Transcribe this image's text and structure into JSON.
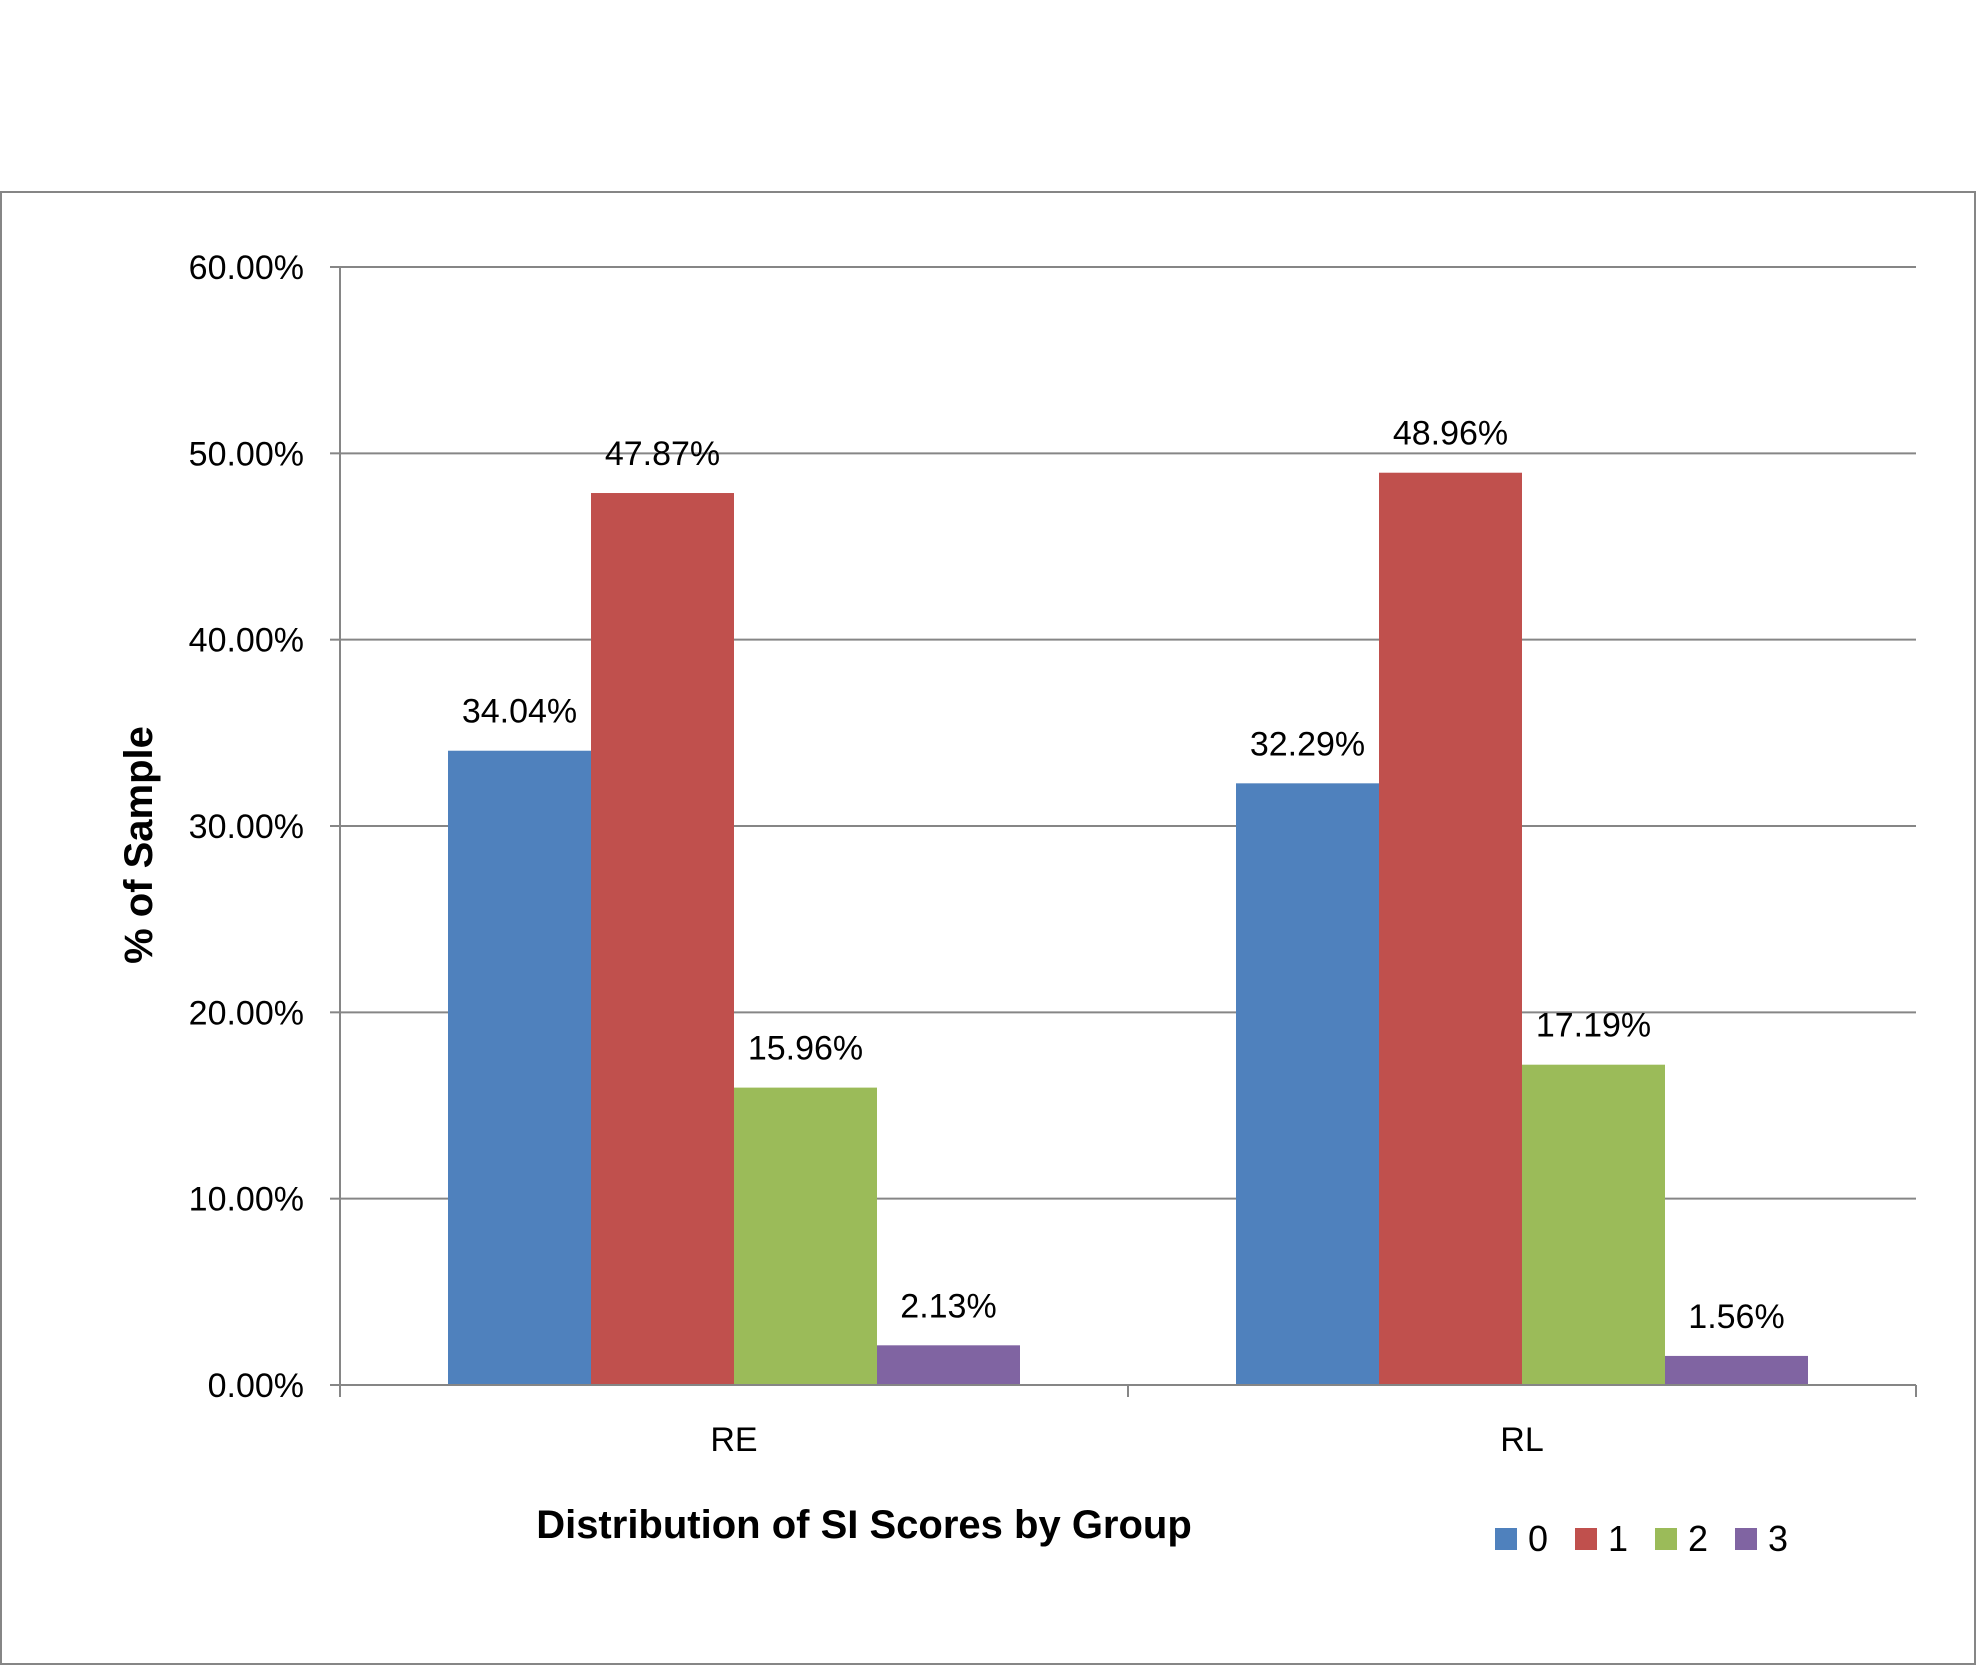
{
  "chart_data": {
    "type": "bar",
    "categories": [
      "RE",
      "RL"
    ],
    "series": [
      {
        "name": "0",
        "color": "#4F81BD",
        "values": [
          34.04,
          32.29
        ],
        "labels": [
          "34.04%",
          "32.29%"
        ]
      },
      {
        "name": "1",
        "color": "#C0504D",
        "values": [
          47.87,
          48.96
        ],
        "labels": [
          "47.87%",
          "48.96%"
        ]
      },
      {
        "name": "2",
        "color": "#9BBB59",
        "values": [
          15.96,
          17.19
        ],
        "labels": [
          "15.96%",
          "17.19%"
        ]
      },
      {
        "name": "3",
        "color": "#8064A2",
        "values": [
          2.13,
          1.56
        ],
        "labels": [
          "2.13%",
          "1.56%"
        ]
      }
    ],
    "title": "",
    "xlabel": "Distribution of SI Scores by Group",
    "ylabel": "% of Sample",
    "ylim": [
      0,
      60
    ],
    "yticks": [
      0,
      10,
      20,
      30,
      40,
      50,
      60
    ],
    "ytick_labels": [
      "0.00%",
      "10.00%",
      "20.00%",
      "30.00%",
      "40.00%",
      "50.00%",
      "60.00%"
    ],
    "grid": true,
    "legend_position": "bottom-right"
  }
}
